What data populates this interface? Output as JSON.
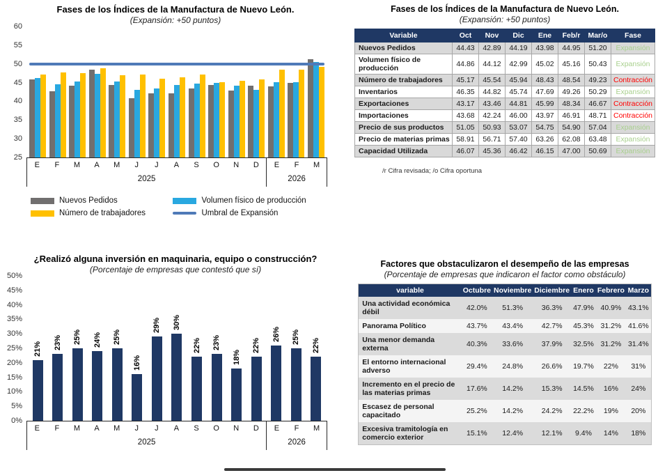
{
  "colors": {
    "gray_series": "#716F6F",
    "blue_series": "#29A8E0",
    "yellow_series": "#FFC000",
    "threshold_line": "#4F7AB8",
    "navy_bar": "#1F3864",
    "table_header_bg": "#1F3864",
    "stripe_gray": "#D9D9D9",
    "expansion_green": "#A9D08E",
    "contraction_red": "#FF0000"
  },
  "chart_data": [
    {
      "id": "fases-chart",
      "type": "bar",
      "title": "Fases de los Índices de la Manufactura de Nuevo León.",
      "subtitle": "(Expansión: +50 puntos)",
      "categories": [
        "E",
        "F",
        "M",
        "A",
        "M",
        "J",
        "J",
        "A",
        "S",
        "O",
        "N",
        "D",
        "E",
        "F",
        "M"
      ],
      "year_groups": [
        {
          "label": "2025",
          "span": 12
        },
        {
          "label": "2026",
          "span": 3
        }
      ],
      "ylim": [
        25,
        60
      ],
      "yticks": [
        60,
        55,
        50,
        45,
        40,
        35,
        30,
        25
      ],
      "grid": false,
      "legend_position": "bottom",
      "series": [
        {
          "name": "Nuevos Pedidos",
          "color": "#716F6F",
          "values": [
            45.9,
            42.6,
            44.2,
            48.5,
            44.3,
            40.8,
            42.1,
            42.1,
            43.4,
            44.43,
            42.89,
            44.19,
            43.98,
            44.95,
            51.2
          ]
        },
        {
          "name": "Volumen físico de producción",
          "color": "#29A8E0",
          "values": [
            46.3,
            44.6,
            45.3,
            47.4,
            45.3,
            43.0,
            43.4,
            44.4,
            44.7,
            44.86,
            44.12,
            42.99,
            45.02,
            45.16,
            50.43
          ]
        },
        {
          "name": "Número de trabajadores",
          "color": "#FFC000",
          "values": [
            47.1,
            47.7,
            47.6,
            48.8,
            46.9,
            47.2,
            46.1,
            46.4,
            47.1,
            45.17,
            45.54,
            45.94,
            48.43,
            48.54,
            49.23
          ]
        }
      ],
      "threshold": {
        "name": "Umbral de Expansión",
        "value": 50,
        "color": "#4F7AB8"
      }
    },
    {
      "id": "fases-table",
      "type": "table",
      "title": "Fases de los Índices de la Manufactura de Nuevo León.",
      "subtitle": "(Expansión: +50 puntos)",
      "columns": [
        "Variable",
        "Oct",
        "Nov",
        "Dic",
        "Ene",
        "Feb/r",
        "Mar/o",
        "Fase"
      ],
      "rows": [
        {
          "variable": "Nuevos Pedidos",
          "values": [
            "44.43",
            "42.89",
            "44.19",
            "43.98",
            "44.95",
            "51.20"
          ],
          "fase": "Expansión"
        },
        {
          "variable": "Volumen físico de producción",
          "values": [
            "44.86",
            "44.12",
            "42.99",
            "45.02",
            "45.16",
            "50.43"
          ],
          "fase": "Expansión"
        },
        {
          "variable": "Número de trabajadores",
          "values": [
            "45.17",
            "45.54",
            "45.94",
            "48.43",
            "48.54",
            "49.23"
          ],
          "fase": "Contracción"
        },
        {
          "variable": "Inventarios",
          "values": [
            "46.35",
            "44.82",
            "45.74",
            "47.69",
            "49.26",
            "50.29"
          ],
          "fase": "Expansión"
        },
        {
          "variable": "Exportaciones",
          "values": [
            "43.17",
            "43.46",
            "44.81",
            "45.99",
            "48.34",
            "46.67"
          ],
          "fase": "Contracción"
        },
        {
          "variable": "Importaciones",
          "values": [
            "43.68",
            "42.24",
            "46.00",
            "43.97",
            "46.91",
            "48.71"
          ],
          "fase": "Contracción"
        },
        {
          "variable": "Precio de sus productos",
          "values": [
            "51.05",
            "50.93",
            "53.07",
            "54.75",
            "54.90",
            "57.04"
          ],
          "fase": "Expansión"
        },
        {
          "variable": "Precio de materias primas",
          "values": [
            "58.91",
            "56.71",
            "57.40",
            "63.26",
            "62.08",
            "63.48"
          ],
          "fase": "Expansión"
        },
        {
          "variable": "Capacidad Utilizada",
          "values": [
            "46.07",
            "45.36",
            "46.42",
            "46.15",
            "47.00",
            "50.69"
          ],
          "fase": "Expansión"
        }
      ],
      "footnote": "/r  Cifra revisada; /o  Cifra oportuna"
    },
    {
      "id": "inversion-chart",
      "type": "bar",
      "title": "¿Realizó alguna inversión en maquinaria, equipo o construcción?",
      "subtitle": "(Porcentaje de empresas que contestó que sí)",
      "categories": [
        "E",
        "F",
        "M",
        "A",
        "M",
        "J",
        "J",
        "A",
        "S",
        "O",
        "N",
        "D",
        "E",
        "F",
        "M"
      ],
      "year_groups": [
        {
          "label": "2025",
          "span": 12
        },
        {
          "label": "2026",
          "span": 3
        }
      ],
      "ylim": [
        0,
        50
      ],
      "yticks": [
        "50%",
        "45%",
        "40%",
        "35%",
        "30%",
        "25%",
        "20%",
        "15%",
        "10%",
        "5%",
        "0%"
      ],
      "grid": false,
      "values": [
        21,
        23,
        25,
        24,
        25,
        16,
        29,
        30,
        22,
        23,
        18,
        22,
        26,
        25,
        22
      ],
      "labels": [
        "21%",
        "23%",
        "25%",
        "24%",
        "25%",
        "16%",
        "29%",
        "30%",
        "22%",
        "23%",
        "18%",
        "22%",
        "26%",
        "25%",
        "22%"
      ],
      "bar_color": "#1F3864"
    },
    {
      "id": "factores-table",
      "type": "table",
      "title": "Factores que obstaculizaron el desempeño de las empresas",
      "subtitle": "(Porcentaje de empresas que indicaron el factor como obstáculo)",
      "columns": [
        "variable",
        "Octubre",
        "Noviembre",
        "Diciembre",
        "Enero",
        "Febrero",
        "Marzo"
      ],
      "rows": [
        {
          "variable": "Una actividad económica débil",
          "values": [
            "42.0%",
            "51.3%",
            "36.3%",
            "47.9%",
            "40.9%",
            "43.1%"
          ]
        },
        {
          "variable": "Panorama Político",
          "values": [
            "43.7%",
            "43.4%",
            "42.7%",
            "45.3%",
            "31.2%",
            "41.6%"
          ]
        },
        {
          "variable": "Una menor demanda externa",
          "values": [
            "40.3%",
            "33.6%",
            "37.9%",
            "32.5%",
            "31.2%",
            "31.4%"
          ]
        },
        {
          "variable": "El entorno internacional adverso",
          "values": [
            "29.4%",
            "24.8%",
            "26.6%",
            "19.7%",
            "22%",
            "31%"
          ]
        },
        {
          "variable": "Incremento en el precio de las materias primas",
          "values": [
            "17.6%",
            "14.2%",
            "15.3%",
            "14.5%",
            "16%",
            "24%"
          ]
        },
        {
          "variable": "Escasez de personal capacitado",
          "values": [
            "25.2%",
            "14.2%",
            "24.2%",
            "22.2%",
            "19%",
            "20%"
          ]
        },
        {
          "variable": "Excesiva tramitología en comercio exterior",
          "values": [
            "15.1%",
            "12.4%",
            "12.1%",
            "9.4%",
            "14%",
            "18%"
          ]
        }
      ]
    }
  ]
}
